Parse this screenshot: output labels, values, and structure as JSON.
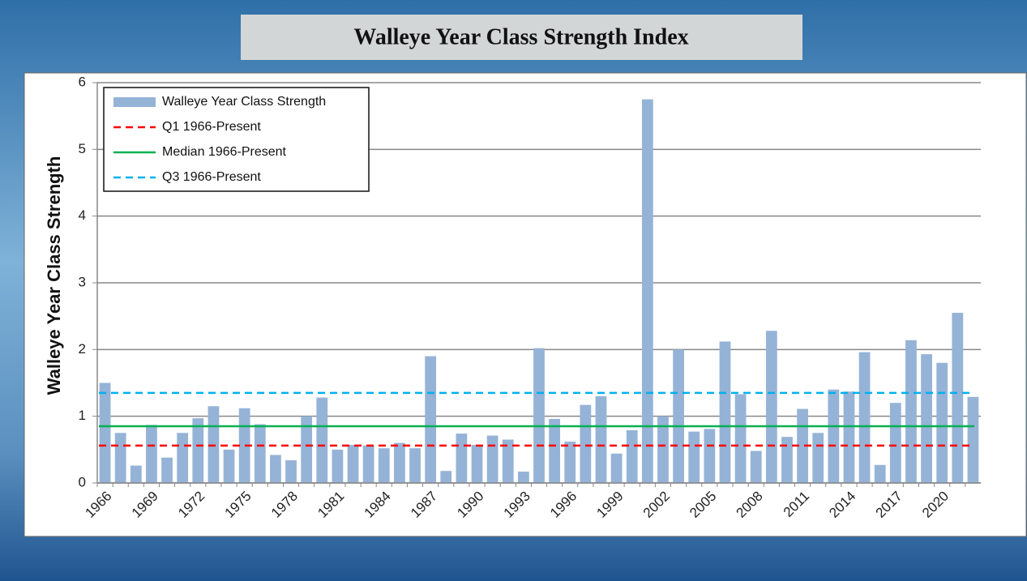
{
  "chart_data": {
    "type": "bar",
    "title": "Walleye Year Class Strength Index",
    "y_label": "Walleye Year Class Strength",
    "categories": [
      "1966",
      null,
      null,
      "1969",
      null,
      null,
      "1972",
      null,
      null,
      "1975",
      null,
      null,
      "1978",
      null,
      null,
      "1981",
      null,
      null,
      "1984",
      null,
      null,
      "1987",
      null,
      null,
      "1990",
      null,
      null,
      "1993",
      null,
      null,
      "1996",
      null,
      null,
      "1999",
      null,
      null,
      "2002",
      null,
      null,
      "2005",
      null,
      null,
      "2008",
      null,
      null,
      "2011",
      null,
      null,
      "2014",
      null,
      null,
      "2017",
      null,
      null,
      "2020",
      null,
      null
    ],
    "series": [
      {
        "name": "Walleye Year Class Strength",
        "color": "#95b3d7",
        "values": [
          1.5,
          0.75,
          0.26,
          0.87,
          0.38,
          0.75,
          0.97,
          1.15,
          0.5,
          1.12,
          0.88,
          0.42,
          0.34,
          1.0,
          1.28,
          0.5,
          0.57,
          0.56,
          0.52,
          0.6,
          0.52,
          1.9,
          0.18,
          0.74,
          0.57,
          0.71,
          0.65,
          0.17,
          2.02,
          0.96,
          0.62,
          1.17,
          1.3,
          0.44,
          0.79,
          5.75,
          1.0,
          2.0,
          0.77,
          0.81,
          2.12,
          1.33,
          0.48,
          2.28,
          0.69,
          1.11,
          0.75,
          1.4,
          1.37,
          1.96,
          0.27,
          1.2,
          2.14,
          1.93,
          1.8,
          2.55,
          1.29
        ]
      }
    ],
    "reference_lines": [
      {
        "name": "Q1 1966-Present",
        "color": "#ff0000",
        "value": 0.56,
        "style": "dashed"
      },
      {
        "name": "Median 1966-Present",
        "color": "#00b050",
        "value": 0.85,
        "style": "solid"
      },
      {
        "name": "Q3 1966-Present",
        "color": "#00b0f0",
        "value": 1.35,
        "style": "dashed"
      }
    ],
    "ylim": [
      0,
      6
    ],
    "yticks": [
      0,
      1,
      2,
      3,
      4,
      5,
      6
    ],
    "grid": true,
    "legend": "upper left"
  }
}
